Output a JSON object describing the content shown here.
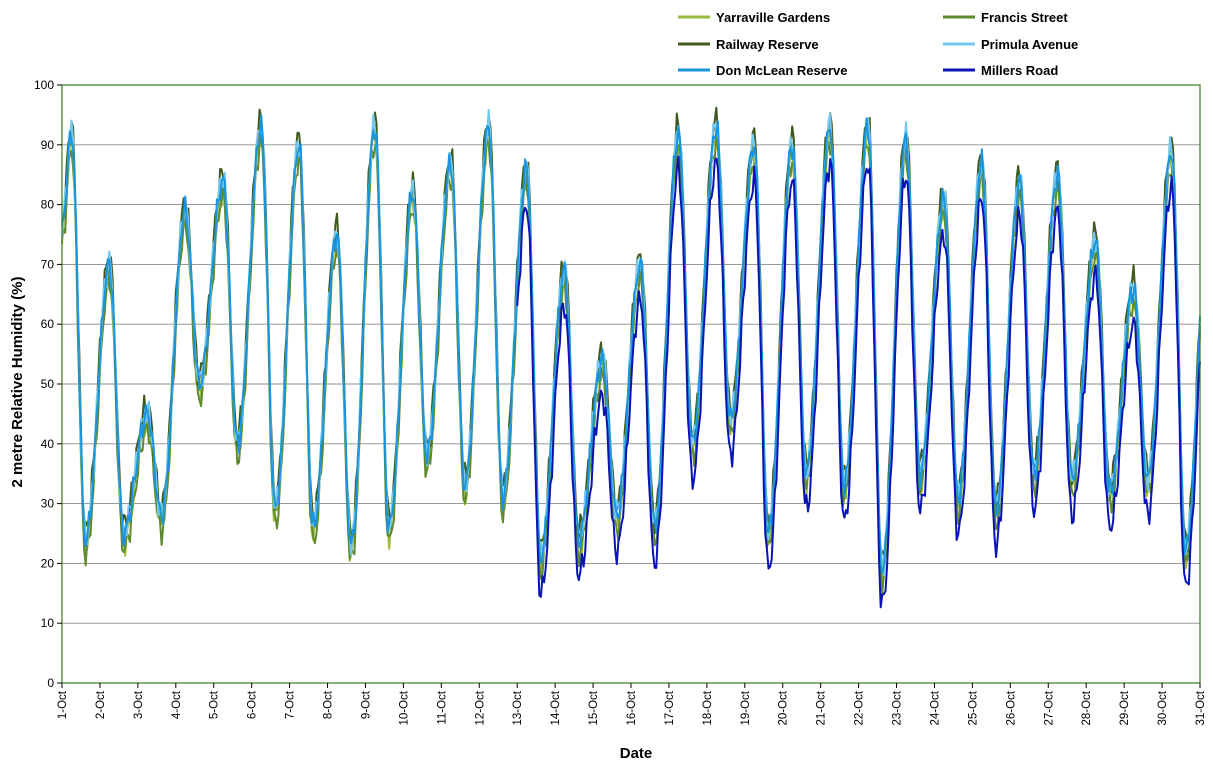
{
  "chart_data": {
    "type": "line",
    "title": "",
    "xlabel": "Date",
    "ylabel": "2 metre Relative Humidity (%)",
    "ylim": [
      0,
      100
    ],
    "yticks": [
      0,
      10,
      20,
      30,
      40,
      50,
      60,
      70,
      80,
      90,
      100
    ],
    "x_tick_labels": [
      "1-Oct",
      "2-Oct",
      "3-Oct",
      "4-Oct",
      "5-Oct",
      "6-Oct",
      "7-Oct",
      "8-Oct",
      "9-Oct",
      "10-Oct",
      "11-Oct",
      "12-Oct",
      "13-Oct",
      "14-Oct",
      "15-Oct",
      "16-Oct",
      "17-Oct",
      "18-Oct",
      "19-Oct",
      "20-Oct",
      "21-Oct",
      "22-Oct",
      "23-Oct",
      "24-Oct",
      "25-Oct",
      "26-Oct",
      "27-Oct",
      "28-Oct",
      "29-Oct",
      "30-Oct",
      "31-Oct"
    ],
    "x_unit": "day of October (1 = 1-Oct 00:00)",
    "grid": "horizontal",
    "plot_border_color": "#3a7a1a",
    "legend_position": "top-right",
    "daily_extremes": [
      {
        "day": 1,
        "max": 92,
        "min": 24
      },
      {
        "day": 2,
        "max": 70,
        "min": 25
      },
      {
        "day": 3,
        "max": 45,
        "min": 28
      },
      {
        "day": 4,
        "max": 79,
        "min": 50
      },
      {
        "day": 5,
        "max": 84,
        "min": 40
      },
      {
        "day": 6,
        "max": 93,
        "min": 29
      },
      {
        "day": 7,
        "max": 90,
        "min": 26
      },
      {
        "day": 8,
        "max": 75,
        "min": 23
      },
      {
        "day": 9,
        "max": 93,
        "min": 26
      },
      {
        "day": 10,
        "max": 82,
        "min": 38
      },
      {
        "day": 11,
        "max": 87,
        "min": 33
      },
      {
        "day": 12,
        "max": 93,
        "min": 31
      },
      {
        "day": 13,
        "max": 86,
        "min": 21
      },
      {
        "day": 14,
        "max": 69,
        "min": 24
      },
      {
        "day": 15,
        "max": 54,
        "min": 28
      },
      {
        "day": 16,
        "max": 70,
        "min": 26
      },
      {
        "day": 17,
        "max": 92,
        "min": 40
      },
      {
        "day": 18,
        "max": 93,
        "min": 44
      },
      {
        "day": 19,
        "max": 90,
        "min": 25
      },
      {
        "day": 20,
        "max": 90,
        "min": 35
      },
      {
        "day": 21,
        "max": 93,
        "min": 33
      },
      {
        "day": 22,
        "max": 93,
        "min": 19
      },
      {
        "day": 23,
        "max": 91,
        "min": 35
      },
      {
        "day": 24,
        "max": 81,
        "min": 31
      },
      {
        "day": 25,
        "max": 87,
        "min": 29
      },
      {
        "day": 26,
        "max": 84,
        "min": 35
      },
      {
        "day": 27,
        "max": 85,
        "min": 34
      },
      {
        "day": 28,
        "max": 74,
        "min": 32
      },
      {
        "day": 29,
        "max": 66,
        "min": 34
      },
      {
        "day": 30,
        "max": 89,
        "min": 22
      },
      {
        "day": 31,
        "max": 80,
        "min": null
      }
    ],
    "series": [
      {
        "name": "Yarraville Gardens",
        "color": "#9bbb3b",
        "offset": -1.5,
        "start_day": 1
      },
      {
        "name": "Francis Street",
        "color": "#5f8a2e",
        "offset": -2.5,
        "start_day": 1
      },
      {
        "name": "Railway Reserve",
        "color": "#3f5a1e",
        "offset": 1.5,
        "start_day": 1
      },
      {
        "name": "Primula Avenue",
        "color": "#72c8f0",
        "offset": 0.5,
        "start_day": 1
      },
      {
        "name": "Don McLean Reserve",
        "color": "#1a95dc",
        "offset": 0,
        "start_day": 1
      },
      {
        "name": "Millers Road",
        "color": "#0a14b4",
        "offset": -6,
        "start_day": 13
      }
    ]
  }
}
